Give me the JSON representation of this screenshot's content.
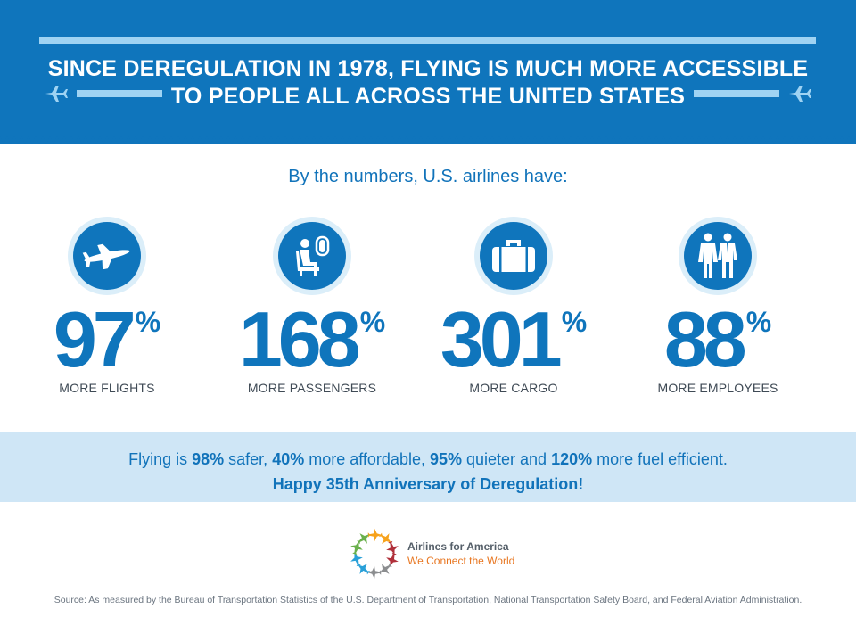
{
  "header": {
    "headline_line1": "SINCE DEREGULATION IN 1978, FLYING IS MUCH MORE ACCESSIBLE",
    "headline_line2": "TO PEOPLE ALL ACROSS THE UNITED STATES",
    "background_color": "#0f75bc",
    "accent_color": "#9fd3f3",
    "icons": [
      "airplane-icon",
      "airplane-icon"
    ]
  },
  "intro": "By the numbers, U.S. airlines have:",
  "stats": [
    {
      "icon": "airplane-icon",
      "value": "97",
      "unit": "%",
      "label": "MORE FLIGHTS"
    },
    {
      "icon": "seated-passenger-icon",
      "value": "168",
      "unit": "%",
      "label": "MORE PASSENGERS"
    },
    {
      "icon": "suitcase-icon",
      "value": "301",
      "unit": "%",
      "label": "MORE CARGO"
    },
    {
      "icon": "employees-icon",
      "value": "88",
      "unit": "%",
      "label": "MORE EMPLOYEES"
    }
  ],
  "band": {
    "line1_parts": [
      "Flying is ",
      "98%",
      " safer, ",
      "40%",
      " more affordable, ",
      "95%",
      " quieter and ",
      "120%",
      " more fuel efficient."
    ],
    "line2": "Happy 35th Anniversary of Deregulation!",
    "background_color": "#cfe6f6"
  },
  "logo": {
    "name": "Airlines for America",
    "tagline": "We Connect the World",
    "colors": [
      "#f7a21b",
      "#b0303a",
      "#8b8d8f",
      "#29a0d8",
      "#6ab04c"
    ]
  },
  "source": "Source: As measured by the Bureau of Transportation Statistics of the U.S. Department of Transportation, National Transportation Safety Board, and Federal Aviation Administration."
}
